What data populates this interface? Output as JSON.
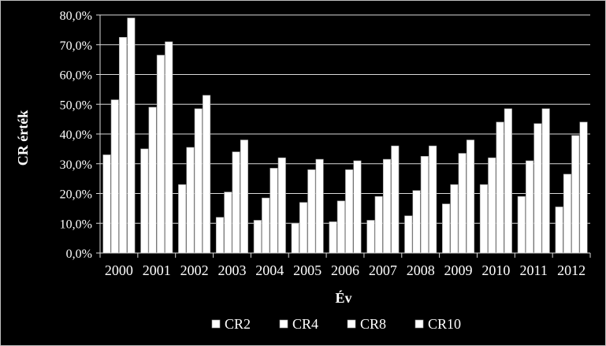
{
  "chart_data": {
    "type": "bar",
    "xlabel": "Év",
    "ylabel": "CR érték",
    "ylim": [
      0,
      80
    ],
    "y_ticks": [
      0,
      10,
      20,
      30,
      40,
      50,
      60,
      70,
      80
    ],
    "y_tick_labels": [
      "0,0%",
      "10,0%",
      "20,0%",
      "30,0%",
      "40,0%",
      "50,0%",
      "60,0%",
      "70,0%",
      "80,0%"
    ],
    "categories": [
      "2000",
      "2001",
      "2002",
      "2003",
      "2004",
      "2005",
      "2006",
      "2007",
      "2008",
      "2009",
      "2010",
      "2011",
      "2012"
    ],
    "series": [
      {
        "name": "CR2",
        "values": [
          33.0,
          35.0,
          23.0,
          12.0,
          11.0,
          10.0,
          10.5,
          11.0,
          12.5,
          16.5,
          23.0,
          19.0,
          15.5
        ]
      },
      {
        "name": "CR4",
        "values": [
          51.5,
          49.0,
          35.5,
          20.5,
          18.5,
          17.0,
          17.5,
          19.0,
          21.0,
          23.0,
          32.0,
          31.0,
          26.5
        ]
      },
      {
        "name": "CR8",
        "values": [
          72.5,
          66.5,
          48.5,
          34.0,
          28.5,
          28.0,
          28.0,
          31.5,
          32.5,
          33.5,
          44.0,
          43.5,
          39.5
        ]
      },
      {
        "name": "CR10",
        "values": [
          79.0,
          71.0,
          53.0,
          38.0,
          32.0,
          31.5,
          31.0,
          36.0,
          36.0,
          38.0,
          48.5,
          48.5,
          44.0
        ]
      }
    ],
    "grid": true,
    "legend": "bottom",
    "colors": {
      "background": "#000000",
      "bars": "#ffffff",
      "grid": "#d9d9d9",
      "text": "#ffffff"
    }
  }
}
